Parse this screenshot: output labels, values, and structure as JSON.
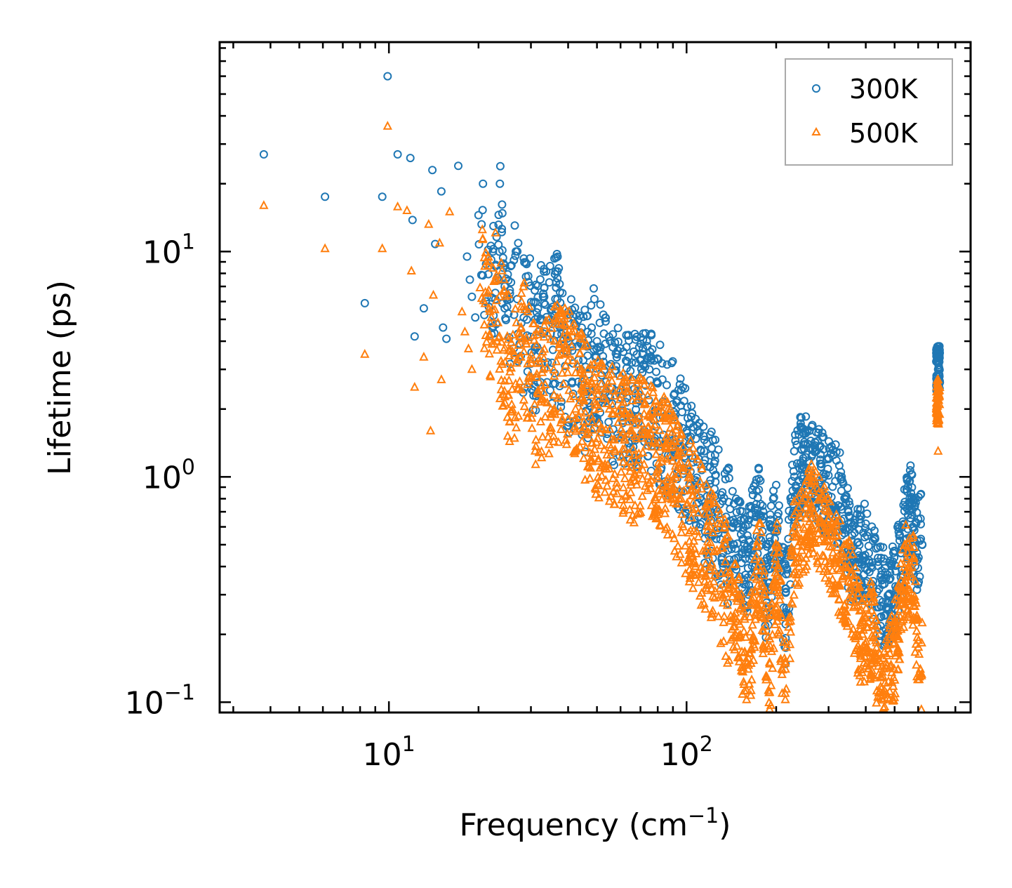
{
  "chart_data": {
    "type": "scatter",
    "xlabel": "Frequency (cm",
    "xlabel_exp": "−1",
    "xlabel_close": ")",
    "ylabel": "Lifetime (ps)",
    "xscale": "log",
    "yscale": "log",
    "xlim": [
      2.7,
      900
    ],
    "ylim": [
      0.09,
      85
    ],
    "x_ticks": [
      {
        "base": "10",
        "exp": "1",
        "value": 10
      },
      {
        "base": "10",
        "exp": "2",
        "value": 100
      }
    ],
    "y_ticks": [
      {
        "base": "10",
        "exp": "−1",
        "value": 0.1
      },
      {
        "base": "10",
        "exp": "0",
        "value": 1
      },
      {
        "base": "10",
        "exp": "1",
        "value": 10
      }
    ],
    "legend_position": "top-right",
    "series": [
      {
        "name": "300K",
        "marker": "circle",
        "color": "#1f77b4",
        "sample_points": [
          [
            3.8,
            27
          ],
          [
            6.1,
            17.5
          ],
          [
            8.3,
            5.9
          ],
          [
            9.5,
            17.5
          ],
          [
            9.9,
            60
          ],
          [
            10.7,
            27
          ],
          [
            11.8,
            26
          ],
          [
            12.0,
            13.8
          ],
          [
            12.2,
            4.2
          ],
          [
            13.1,
            5.6
          ],
          [
            14.0,
            23
          ],
          [
            14.3,
            10.8
          ],
          [
            15.0,
            18.5
          ],
          [
            15.2,
            4.6
          ],
          [
            15.6,
            4.1
          ],
          [
            17.1,
            24
          ],
          [
            18.3,
            9.5
          ],
          [
            18.7,
            7.5
          ],
          [
            19.0,
            6.3
          ],
          [
            19.5,
            5.1
          ],
          [
            20.0,
            14.5
          ],
          [
            20.7,
            20
          ],
          [
            21.2,
            8.8
          ],
          [
            22.0,
            10.6
          ],
          [
            23.0,
            11.6
          ],
          [
            23.6,
            20
          ],
          [
            24.5,
            7.0
          ],
          [
            25.2,
            5.3
          ],
          [
            27.0,
            10
          ],
          [
            27.5,
            3.9
          ],
          [
            29.0,
            8.8
          ],
          [
            30.0,
            5.6
          ],
          [
            31.0,
            5.0
          ],
          [
            33.0,
            6.5
          ],
          [
            35.0,
            5.5
          ],
          [
            36.8,
            7.6
          ],
          [
            38.0,
            4.3
          ],
          [
            40.0,
            4.0
          ],
          [
            42.0,
            4.8
          ],
          [
            45.0,
            3.3
          ],
          [
            48.0,
            4.6
          ],
          [
            50.0,
            4.0
          ],
          [
            55.0,
            3.1
          ],
          [
            58.0,
            3.1
          ],
          [
            66.0,
            2.7
          ],
          [
            75.0,
            3.0
          ],
          [
            80.0,
            2.6
          ],
          [
            90.0,
            2.1
          ],
          [
            100.0,
            1.6
          ],
          [
            110.0,
            1.2
          ],
          [
            125.0,
            0.95
          ],
          [
            140.0,
            0.72
          ],
          [
            160.0,
            0.55
          ],
          [
            175.0,
            0.98
          ],
          [
            185.0,
            0.4
          ],
          [
            200.0,
            0.92
          ],
          [
            215.0,
            0.32
          ],
          [
            230.0,
            1.3
          ],
          [
            250.0,
            1.6
          ],
          [
            270.0,
            1.35
          ],
          [
            300.0,
            1.2
          ],
          [
            330.0,
            1.05
          ],
          [
            360.0,
            0.55
          ],
          [
            400.0,
            0.62
          ],
          [
            440.0,
            0.42
          ],
          [
            480.0,
            0.35
          ],
          [
            520.0,
            0.55
          ],
          [
            560.0,
            0.95
          ],
          [
            600.0,
            0.65
          ],
          [
            700.0,
            3.8
          ],
          [
            700.0,
            3.0
          ]
        ]
      },
      {
        "name": "500K",
        "marker": "triangle",
        "color": "#ff7f0e",
        "sample_points": [
          [
            3.8,
            16
          ],
          [
            6.1,
            10.3
          ],
          [
            8.3,
            3.5
          ],
          [
            9.5,
            10.3
          ],
          [
            9.9,
            36
          ],
          [
            10.7,
            15.8
          ],
          [
            11.5,
            15.2
          ],
          [
            11.9,
            8.2
          ],
          [
            12.2,
            2.5
          ],
          [
            13.1,
            3.4
          ],
          [
            13.6,
            13.2
          ],
          [
            14.1,
            6.4
          ],
          [
            14.8,
            10.9
          ],
          [
            15.0,
            2.7
          ],
          [
            13.8,
            1.6
          ],
          [
            16.0,
            15
          ],
          [
            17.6,
            5.4
          ],
          [
            18.0,
            4.4
          ],
          [
            18.5,
            3.7
          ],
          [
            19.0,
            3.0
          ],
          [
            20.6,
            12.5
          ],
          [
            21.0,
            8.6
          ],
          [
            22.1,
            5.1
          ],
          [
            22.8,
            12.1
          ],
          [
            23.5,
            6.3
          ],
          [
            25.0,
            4.2
          ],
          [
            26.0,
            3.6
          ],
          [
            27.5,
            3.4
          ],
          [
            28.4,
            5.7
          ],
          [
            30.0,
            3.2
          ],
          [
            33.0,
            3.0
          ],
          [
            36.0,
            4.0
          ],
          [
            40.0,
            3.5
          ],
          [
            44.0,
            2.9
          ],
          [
            48.0,
            2.3
          ],
          [
            55.0,
            2.0
          ],
          [
            60.0,
            1.9
          ],
          [
            67.0,
            1.7
          ],
          [
            72.0,
            1.9
          ],
          [
            78.0,
            1.8
          ],
          [
            85.0,
            1.4
          ],
          [
            95.0,
            1.1
          ],
          [
            105.0,
            0.88
          ],
          [
            120.0,
            0.6
          ],
          [
            135.0,
            0.42
          ],
          [
            150.0,
            0.3
          ],
          [
            160.0,
            0.15
          ],
          [
            175.0,
            0.62
          ],
          [
            190.0,
            0.15
          ],
          [
            200.0,
            0.58
          ],
          [
            215.0,
            0.14
          ],
          [
            230.0,
            0.68
          ],
          [
            250.0,
            0.8
          ],
          [
            265.0,
            0.95
          ],
          [
            290.0,
            0.72
          ],
          [
            320.0,
            0.55
          ],
          [
            350.0,
            0.45
          ],
          [
            390.0,
            0.23
          ],
          [
            420.0,
            0.28
          ],
          [
            450.0,
            0.13
          ],
          [
            500.0,
            0.22
          ],
          [
            540.0,
            0.5
          ],
          [
            580.0,
            0.44
          ],
          [
            610.0,
            0.14
          ],
          [
            700.0,
            2.7
          ],
          [
            700.0,
            1.3
          ]
        ]
      }
    ]
  }
}
